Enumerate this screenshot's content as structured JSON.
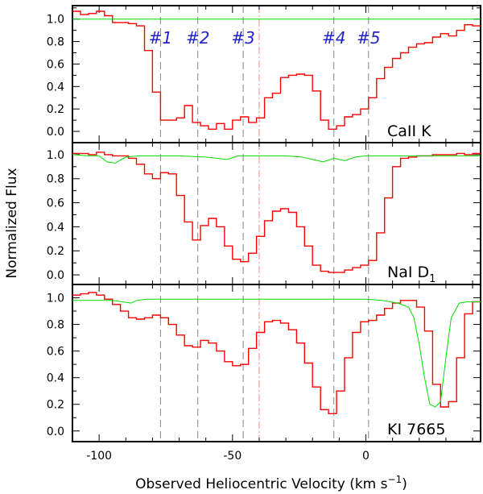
{
  "chart_data": {
    "type": "line",
    "xlabel": "Observed Heliocentric Velocity (km s⁻¹)",
    "ylabel": "Normalized Flux",
    "xlim": [
      -110,
      43
    ],
    "xticks": [
      "-100",
      "-50",
      "0"
    ],
    "xtick_values": [
      -100,
      -50,
      0
    ],
    "yticks": [
      "0.0",
      "0.2",
      "0.4",
      "0.6",
      "0.8",
      "1.0"
    ],
    "ytick_values": [
      0.0,
      0.2,
      0.4,
      0.6,
      0.8,
      1.0
    ],
    "reference_line_x": -40,
    "components": [
      {
        "label": "#1",
        "x": -77
      },
      {
        "label": "#2",
        "x": -63
      },
      {
        "label": "#3",
        "x": -46
      },
      {
        "label": "#4",
        "x": -12
      },
      {
        "label": "#5",
        "x": 1
      }
    ],
    "panels": [
      {
        "label": "CaII K",
        "ylim": [
          -0.1,
          1.12
        ],
        "series": [
          {
            "color": "#ff0000",
            "kind": "step",
            "x": [
              -110,
              -107,
              -104,
              -101,
              -98,
              -95,
              -92,
              -89,
              -86,
              -83,
              -80,
              -77,
              -74,
              -71,
              -68,
              -65,
              -62,
              -59,
              -56,
              -53,
              -50,
              -47,
              -44,
              -41,
              -38,
              -35,
              -32,
              -29,
              -26,
              -23,
              -20,
              -17,
              -14,
              -11,
              -8,
              -5,
              -2,
              1,
              4,
              7,
              10,
              13,
              16,
              19,
              22,
              25,
              28,
              31,
              34,
              37,
              40,
              43
            ],
            "y": [
              1.07,
              1.04,
              1.05,
              1.07,
              1.03,
              0.97,
              0.97,
              0.96,
              0.94,
              0.72,
              0.35,
              0.1,
              0.1,
              0.12,
              0.23,
              0.08,
              0.05,
              0.02,
              0.07,
              0.02,
              0.1,
              0.13,
              0.08,
              0.12,
              0.3,
              0.34,
              0.48,
              0.5,
              0.51,
              0.5,
              0.36,
              0.1,
              0.02,
              0.05,
              0.13,
              0.15,
              0.2,
              0.3,
              0.47,
              0.57,
              0.65,
              0.7,
              0.75,
              0.78,
              0.79,
              0.84,
              0.87,
              0.85,
              0.9,
              0.95,
              0.94,
              0.93
            ]
          },
          {
            "color": "#00dd00",
            "kind": "line",
            "x": [
              -110,
              43
            ],
            "y": [
              1.0,
              1.0
            ]
          }
        ]
      },
      {
        "label": "NaI D1",
        "ylim": [
          -0.08,
          1.1
        ],
        "series": [
          {
            "color": "#ff0000",
            "kind": "step",
            "x": [
              -110,
              -107,
              -104,
              -101,
              -98,
              -95,
              -92,
              -89,
              -86,
              -83,
              -80,
              -77,
              -74,
              -71,
              -68,
              -65,
              -62,
              -59,
              -56,
              -53,
              -50,
              -47,
              -44,
              -41,
              -38,
              -35,
              -32,
              -29,
              -26,
              -23,
              -20,
              -17,
              -14,
              -11,
              -8,
              -5,
              -2,
              1,
              4,
              7,
              10,
              13,
              16,
              19,
              22,
              25,
              28,
              31,
              34,
              37,
              40,
              43
            ],
            "y": [
              1.01,
              1.01,
              1.0,
              1.02,
              1.0,
              0.99,
              0.99,
              0.97,
              0.92,
              0.84,
              0.8,
              0.85,
              0.84,
              0.66,
              0.44,
              0.29,
              0.41,
              0.47,
              0.4,
              0.24,
              0.13,
              0.11,
              0.18,
              0.32,
              0.45,
              0.53,
              0.55,
              0.52,
              0.4,
              0.24,
              0.08,
              0.03,
              0.02,
              0.02,
              0.04,
              0.06,
              0.08,
              0.12,
              0.35,
              0.64,
              0.9,
              0.97,
              0.98,
              0.99,
              0.99,
              1.0,
              1.0,
              1.0,
              1.01,
              1.0,
              1.01,
              1.01
            ]
          },
          {
            "color": "#00dd00",
            "kind": "line",
            "x": [
              -110,
              -104,
              -100,
              -97,
              -94,
              -90,
              -85,
              -80,
              -70,
              -60,
              -52,
              -48,
              -44,
              -36,
              -30,
              -24,
              -20,
              -16,
              -12,
              -8,
              -4,
              0,
              4,
              10,
              20,
              30,
              43
            ],
            "y": [
              1.0,
              0.99,
              0.99,
              0.94,
              0.93,
              0.98,
              0.99,
              0.99,
              0.99,
              0.98,
              0.96,
              0.99,
              0.99,
              0.99,
              0.99,
              0.98,
              0.96,
              0.94,
              0.97,
              0.95,
              0.98,
              0.99,
              0.99,
              0.99,
              0.99,
              0.99,
              0.99
            ]
          }
        ]
      },
      {
        "label": "KI 7665",
        "ylim": [
          -0.08,
          1.1
        ],
        "series": [
          {
            "color": "#ff0000",
            "kind": "step",
            "x": [
              -110,
              -107,
              -104,
              -101,
              -98,
              -95,
              -92,
              -89,
              -86,
              -83,
              -80,
              -77,
              -74,
              -71,
              -68,
              -65,
              -62,
              -59,
              -56,
              -53,
              -50,
              -47,
              -44,
              -41,
              -38,
              -35,
              -32,
              -29,
              -26,
              -23,
              -20,
              -17,
              -14,
              -11,
              -8,
              -5,
              -2,
              1,
              4,
              7,
              10,
              13,
              16,
              19,
              22,
              25,
              28,
              31,
              34,
              37,
              40,
              43
            ],
            "y": [
              1.02,
              1.03,
              1.04,
              1.02,
              0.99,
              0.95,
              0.9,
              0.85,
              0.84,
              0.85,
              0.87,
              0.85,
              0.8,
              0.72,
              0.64,
              0.63,
              0.68,
              0.66,
              0.6,
              0.52,
              0.49,
              0.5,
              0.62,
              0.74,
              0.82,
              0.83,
              0.81,
              0.76,
              0.66,
              0.51,
              0.33,
              0.16,
              0.13,
              0.3,
              0.55,
              0.74,
              0.82,
              0.83,
              0.87,
              0.92,
              0.96,
              0.98,
              0.98,
              0.93,
              0.75,
              0.35,
              0.18,
              0.22,
              0.55,
              0.88,
              0.97,
              0.98
            ]
          },
          {
            "color": "#00dd00",
            "kind": "line",
            "x": [
              -110,
              -100,
              -95,
              -88,
              -86,
              -82,
              -80,
              -70,
              -60,
              -50,
              -40,
              -30,
              -20,
              -10,
              0,
              6,
              12,
              16,
              18,
              20,
              22,
              24,
              26,
              28,
              30,
              32,
              35,
              38,
              43
            ],
            "y": [
              0.98,
              0.98,
              0.98,
              0.96,
              0.98,
              0.99,
              0.99,
              0.99,
              0.99,
              0.99,
              0.99,
              0.99,
              0.99,
              0.99,
              0.99,
              0.98,
              0.96,
              0.93,
              0.85,
              0.65,
              0.4,
              0.2,
              0.18,
              0.22,
              0.55,
              0.85,
              0.96,
              0.97,
              0.97
            ]
          }
        ]
      }
    ]
  }
}
